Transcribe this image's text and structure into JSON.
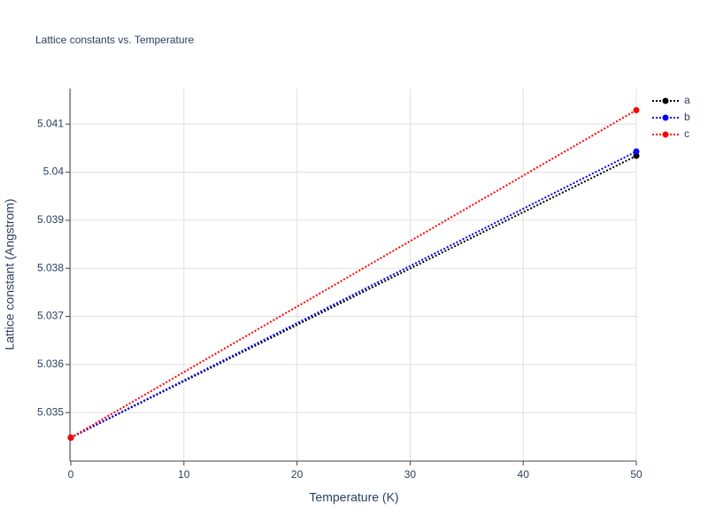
{
  "chart_data": {
    "type": "line",
    "title": "Lattice constants vs. Temperature",
    "x_label": "Temperature (K)",
    "y_label": "Lattice constant (Angstrom)",
    "x": [
      0,
      50
    ],
    "series": [
      {
        "name": "a",
        "color": "#000000",
        "values": [
          5.03448,
          5.04034
        ]
      },
      {
        "name": "b",
        "color": "#0000ff",
        "values": [
          5.03448,
          5.04043
        ]
      },
      {
        "name": "c",
        "color": "#ff0000",
        "values": [
          5.03448,
          5.04129
        ]
      }
    ],
    "xlim": [
      0,
      50
    ],
    "xticks": [
      0,
      10,
      20,
      30,
      40,
      50
    ],
    "ylim": [
      5.03401,
      5.04174
    ],
    "yticks": [
      5.035,
      5.036,
      5.037,
      5.038,
      5.039,
      5.04,
      5.041
    ],
    "grid": true,
    "legend": "right"
  }
}
